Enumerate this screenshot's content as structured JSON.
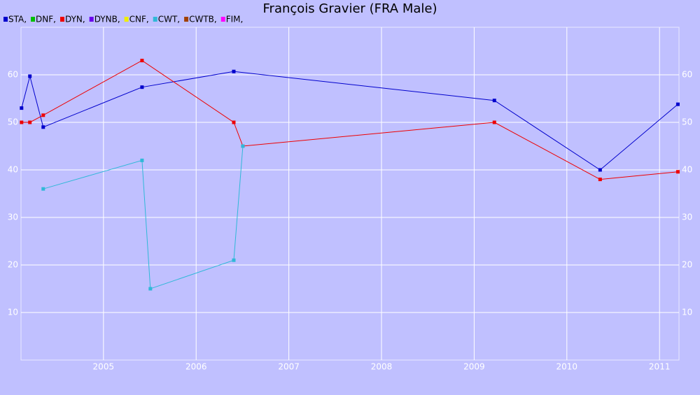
{
  "chart_data": {
    "type": "line",
    "title": "François Gravier (FRA Male)",
    "xlim": [
      2004.11,
      2011.21
    ],
    "xticks": [
      2005,
      2006,
      2007,
      2008,
      2009,
      2010,
      2011
    ],
    "ylim": [
      0,
      70
    ],
    "yticks": [
      10,
      20,
      30,
      40,
      50,
      60
    ],
    "grid": true,
    "series": [
      {
        "name": "STA,",
        "color": "#0000cc",
        "x": [
          2004.116,
          2004.206,
          2004.35,
          2005.416,
          2006.406,
          2009.218,
          2010.359,
          2011.198
        ],
        "values": [
          53,
          59.7,
          49,
          57.4,
          60.7,
          54.6,
          40,
          53.8
        ]
      },
      {
        "name": "DNF,",
        "color": "#00c000",
        "x": [],
        "values": []
      },
      {
        "name": "DYN,",
        "color": "#ee0000",
        "x": [
          2004.116,
          2004.206,
          2004.35,
          2005.416,
          2006.406,
          2006.504,
          2009.218,
          2010.359,
          2011.198
        ],
        "values": [
          50,
          50,
          51.5,
          63,
          50,
          45,
          50,
          38,
          39.6
        ]
      },
      {
        "name": "DYNB,",
        "color": "#6a00ee",
        "x": [],
        "values": []
      },
      {
        "name": "CNF,",
        "color": "#eeee00",
        "x": [],
        "values": []
      },
      {
        "name": "CWT,",
        "color": "#30b8d8",
        "x": [
          2004.35,
          2005.416,
          2005.506,
          2006.406,
          2006.504
        ],
        "values": [
          36,
          42,
          15,
          21,
          45
        ]
      },
      {
        "name": "CWTB,",
        "color": "#a04000",
        "x": [],
        "values": []
      },
      {
        "name": "FIM,",
        "color": "#ff00ff",
        "x": [],
        "values": []
      }
    ]
  }
}
